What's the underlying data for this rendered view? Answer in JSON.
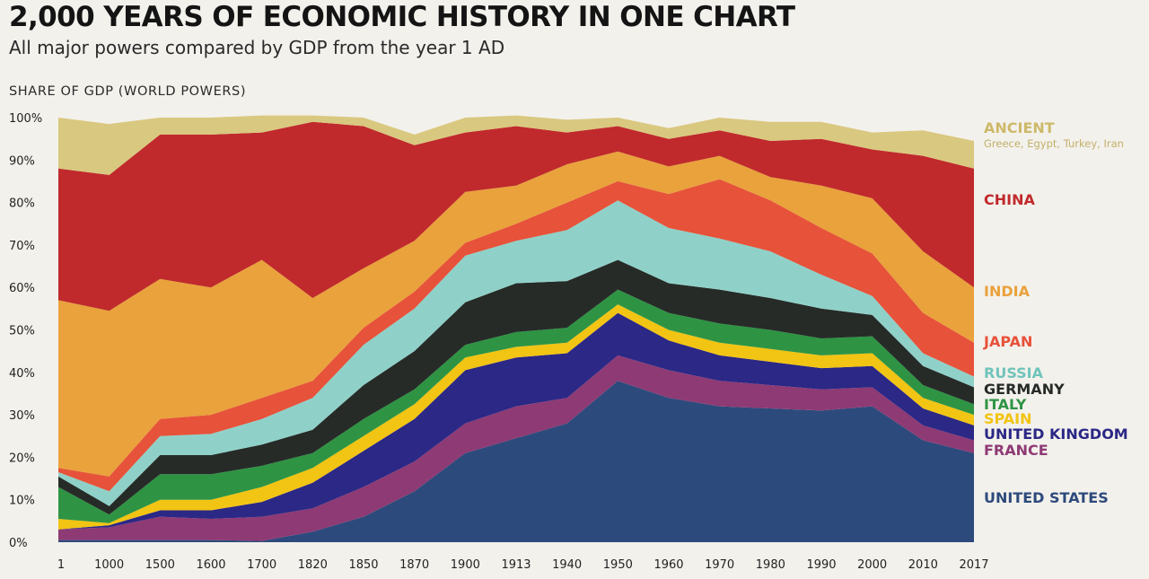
{
  "header": {
    "title": "2,000 YEARS OF ECONOMIC HISTORY IN ONE CHART",
    "subtitle": "All major powers compared by GDP from the year 1 AD"
  },
  "chart_data": {
    "type": "area",
    "stacked": true,
    "ylabel": "SHARE OF GDP (WORLD POWERS)",
    "ylim": [
      0,
      100
    ],
    "y_ticks": [
      "0%",
      "10%",
      "20%",
      "30%",
      "40%",
      "50%",
      "60%",
      "70%",
      "80%",
      "90%",
      "100%"
    ],
    "categories": [
      "1",
      "1000",
      "1500",
      "1600",
      "1700",
      "1820",
      "1850",
      "1870",
      "1900",
      "1913",
      "1940",
      "1950",
      "1960",
      "1970",
      "1980",
      "1990",
      "2000",
      "2010",
      "2017"
    ],
    "series": [
      {
        "name": "UNITED STATES",
        "color": "#2d4a7c",
        "values": [
          0.5,
          0.5,
          0.5,
          0.5,
          0.3,
          2.5,
          6,
          12,
          21,
          24.5,
          28,
          38,
          34,
          32,
          31.5,
          31,
          32,
          24,
          21
        ]
      },
      {
        "name": "FRANCE",
        "color": "#8e3a74",
        "values": [
          2.5,
          3,
          5.5,
          5,
          5.7,
          5.5,
          7,
          7,
          7,
          7.5,
          6,
          6,
          6.5,
          6,
          5.5,
          5,
          4.5,
          3.5,
          3
        ]
      },
      {
        "name": "UNITED KINGDOM",
        "color": "#2b2886",
        "values": [
          0,
          0.5,
          1.5,
          2,
          3.5,
          6,
          8.5,
          10,
          12.5,
          11.5,
          10.5,
          10,
          7,
          6,
          5.5,
          5,
          5,
          4,
          3.5
        ]
      },
      {
        "name": "SPAIN",
        "color": "#f2c413",
        "values": [
          2.5,
          0.5,
          2.5,
          2.5,
          3.5,
          3.5,
          3.5,
          3.5,
          3,
          2.5,
          2.5,
          2,
          2.5,
          3,
          3,
          3,
          3,
          2.5,
          2.5
        ]
      },
      {
        "name": "ITALY",
        "color": "#2e9444",
        "values": [
          7.5,
          2,
          6,
          6,
          5,
          3.5,
          4,
          3.5,
          3,
          3.5,
          3.5,
          3.5,
          4,
          4.5,
          4.5,
          4,
          4,
          3,
          2.5
        ]
      },
      {
        "name": "GERMANY",
        "color": "#262b28",
        "values": [
          2.5,
          2,
          4.5,
          4.5,
          5,
          5.5,
          8,
          9,
          10,
          11.5,
          11,
          7,
          7,
          8,
          7.5,
          7,
          5,
          4.5,
          4
        ]
      },
      {
        "name": "RUSSIA",
        "color": "#8fd1c8",
        "values": [
          1,
          3.5,
          4.5,
          5,
          6,
          7.5,
          9.5,
          10,
          11,
          10,
          12,
          14,
          13,
          12,
          11,
          8,
          4.5,
          3,
          2.5
        ]
      },
      {
        "name": "JAPAN",
        "color": "#e7523a",
        "values": [
          1,
          3.5,
          4,
          4.5,
          5,
          4,
          4,
          4,
          3,
          4,
          6.5,
          4.5,
          8,
          14,
          12,
          11,
          10,
          9.5,
          8
        ]
      },
      {
        "name": "INDIA",
        "color": "#e9a23c",
        "values": [
          39.5,
          39,
          33,
          30,
          32.5,
          19.5,
          14,
          12,
          12,
          9,
          9,
          7,
          6.5,
          5.5,
          5.5,
          10,
          13,
          14.5,
          13
        ]
      },
      {
        "name": "CHINA",
        "color": "#c02a2c",
        "values": [
          31,
          32,
          34,
          36,
          30,
          41.5,
          33.5,
          22.5,
          14,
          14,
          7.5,
          6,
          6.5,
          6,
          8.5,
          11,
          11.5,
          22.5,
          28
        ]
      },
      {
        "name": "ANCIENT",
        "note": "Greece, Egypt, Turkey, Iran",
        "color": "#d9c87f",
        "values": [
          12,
          12,
          4,
          4,
          4,
          1.5,
          2,
          2.5,
          3.5,
          2.5,
          3,
          2,
          2.5,
          3,
          4.5,
          4,
          4,
          6,
          6.5
        ]
      }
    ],
    "grid": false,
    "legend": "right"
  }
}
